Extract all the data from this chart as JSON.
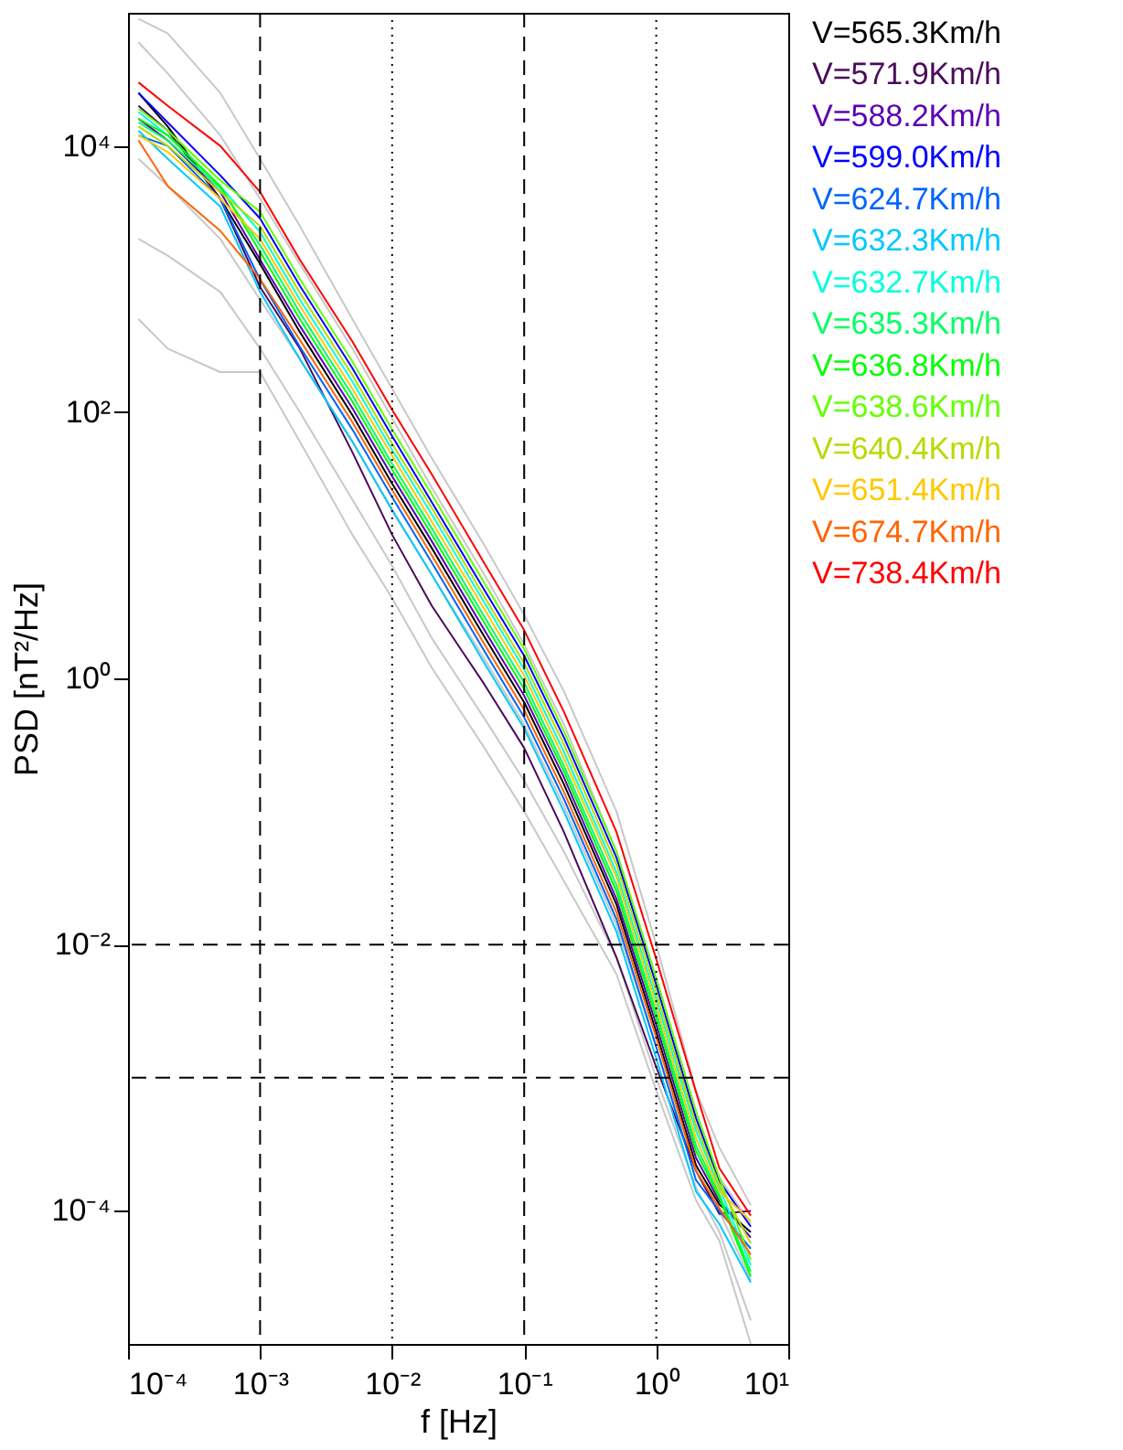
{
  "chart_data": {
    "type": "line",
    "xlabel": "f [Hz]",
    "ylabel": "PSD [nT²/Hz]",
    "x": [
      0.00012,
      0.0002,
      0.0005,
      0.001,
      0.002,
      0.005,
      0.01,
      0.02,
      0.05,
      0.1,
      0.2,
      0.5,
      1,
      2,
      3,
      5.2
    ],
    "log": "xy",
    "xlim": [
      0.0001,
      10
    ],
    "ylim": [
      1e-05,
      100000
    ],
    "xticks": [
      {
        "value": 0.0001,
        "label": "10⁻⁴"
      },
      {
        "value": 0.001,
        "label": "10⁻³"
      },
      {
        "value": 0.01,
        "label": "10⁻²"
      },
      {
        "value": 0.1,
        "label": "10⁻¹"
      },
      {
        "value": 1,
        "label": "10⁰"
      },
      {
        "value": 10,
        "label": "10¹"
      }
    ],
    "yticks": [
      {
        "value": 0.0001,
        "label": "10⁻⁴"
      },
      {
        "value": 0.01,
        "label": "10⁻²"
      },
      {
        "value": 1,
        "label": "10⁰"
      },
      {
        "value": 100,
        "label": "10²"
      },
      {
        "value": 10000,
        "label": "10⁴"
      }
    ],
    "grid": false,
    "legend": "right",
    "line_style": "solid",
    "ref_lines": [
      {
        "axis": "x",
        "value": 0.001,
        "line_style": "dashed",
        "color": "#000000"
      },
      {
        "axis": "x",
        "value": 0.01,
        "line_style": "dotted",
        "color": "#000000"
      },
      {
        "axis": "x",
        "value": 0.1,
        "line_style": "dashed",
        "color": "#000000"
      },
      {
        "axis": "x",
        "value": 1,
        "line_style": "dotted",
        "color": "#000000"
      },
      {
        "axis": "y",
        "value": 0.01,
        "line_style": "dashed",
        "color": "#000000"
      },
      {
        "axis": "y",
        "value": 0.001,
        "line_style": "dashed",
        "color": "#000000"
      }
    ],
    "series": [
      {
        "color": "#c8c8c8",
        "values": [
          90000,
          70000,
          25000,
          8000,
          2500,
          500,
          150,
          45,
          10,
          3,
          0.8,
          0.1,
          0.01,
          0.0008,
          0.0003,
          0.00011
        ]
      },
      {
        "color": "#c8c8c8",
        "values": [
          60000,
          35000,
          12000,
          4000,
          1300,
          300,
          90,
          27,
          6,
          1.8,
          0.45,
          0.05,
          0.005,
          0.00045,
          0.00018,
          8e-05
        ]
      },
      {
        "color": "#c8c8c8",
        "values": [
          8000,
          5000,
          2000,
          700,
          250,
          60,
          18,
          6,
          1.4,
          0.45,
          0.11,
          0.014,
          0.0017,
          0.0002,
          0.0001,
          3e-05
        ]
      },
      {
        "color": "#c8c8c8",
        "values": [
          2000,
          1500,
          800,
          300,
          100,
          22,
          7,
          2,
          0.5,
          0.17,
          0.05,
          0.008,
          0.001,
          0.00015,
          7e-05,
          1.5e-05
        ]
      },
      {
        "color": "#c8c8c8",
        "values": [
          500,
          300,
          200,
          200,
          60,
          12,
          4,
          1.2,
          0.3,
          0.1,
          0.03,
          0.006,
          0.0008,
          0.00012,
          6e-05,
          1e-05
        ]
      },
      {
        "name": "V=565.3Km/h",
        "color": "#000000",
        "values": [
          25000,
          14000,
          4000,
          1300,
          400,
          95,
          29,
          9.5,
          2.05,
          0.66,
          0.16,
          0.02,
          0.0022,
          0.00022,
          0.000112,
          6.9e-05
        ]
      },
      {
        "name": "V=571.9Km/h",
        "color": "#4b0a5a",
        "values": [
          20000,
          13000,
          4000,
          870,
          300,
          50,
          12,
          3.5,
          0.9,
          0.3,
          0.07,
          0.008,
          0.0012,
          0.0002,
          9.5e-05,
          0.0001
        ]
      },
      {
        "name": "V=588.2Km/h",
        "color": "#5a00b4",
        "values": [
          16000,
          11000,
          4500,
          1400,
          445,
          107,
          33,
          10.7,
          2.3,
          0.74,
          0.18,
          0.022,
          0.0025,
          0.00025,
          0.000119,
          6.3e-05
        ]
      },
      {
        "name": "V=599.0Km/h",
        "color": "#0000ff",
        "values": [
          25000,
          15000,
          6000,
          2850,
          890,
          214,
          66,
          21,
          4.6,
          1.48,
          0.36,
          0.045,
          0.005,
          0.0005,
          0.000168,
          7.6e-05
        ]
      },
      {
        "name": "V=624.7Km/h",
        "color": "#0064ff",
        "values": [
          12000,
          10000,
          4000,
          990,
          310,
          74,
          23,
          7.4,
          1.6,
          0.51,
          0.124,
          0.0155,
          0.0017,
          0.00017,
          0.0001,
          5.2e-05
        ]
      },
      {
        "name": "V=632.3Km/h",
        "color": "#00c8ff",
        "values": [
          13000,
          8000,
          3500,
          800,
          250,
          60,
          18.5,
          6,
          1.3,
          0.42,
          0.1,
          0.0125,
          0.0014,
          0.00014,
          8e-05,
          2.9e-05
        ]
      },
      {
        "name": "V=632.7Km/h",
        "color": "#00ffdc",
        "values": [
          18000,
          12000,
          5000,
          2250,
          700,
          170,
          52,
          17,
          3.7,
          1.17,
          0.28,
          0.035,
          0.0039,
          0.0004,
          0.00015,
          3.9e-05
        ]
      },
      {
        "name": "V=635.3Km/h",
        "color": "#00ff64",
        "values": [
          15000,
          11000,
          4800,
          1800,
          560,
          134,
          41,
          13.4,
          2.9,
          0.93,
          0.22,
          0.028,
          0.0031,
          0.00031,
          0.000133,
          3.5e-05
        ]
      },
      {
        "name": "V=636.8Km/h",
        "color": "#00ff00",
        "values": [
          16000,
          12000,
          5000,
          1600,
          500,
          120,
          37,
          12,
          2.6,
          0.83,
          0.2,
          0.025,
          0.0028,
          0.00028,
          0.000126,
          3.2e-05
        ]
      },
      {
        "name": "V=638.6Km/h",
        "color": "#64ff00",
        "values": [
          19000,
          13000,
          5500,
          3200,
          1000,
          240,
          74,
          24,
          5.2,
          1.66,
          0.4,
          0.05,
          0.0056,
          0.00056,
          0.000178,
          4.3e-05
        ]
      },
      {
        "name": "V=640.4Km/h",
        "color": "#b4dc00",
        "values": [
          14000,
          10000,
          4500,
          2500,
          790,
          190,
          58,
          19,
          4.1,
          1.3,
          0.32,
          0.04,
          0.0044,
          0.00044,
          0.000158,
          5.7e-05
        ]
      },
      {
        "name": "V=651.4Km/h",
        "color": "#ffc800",
        "values": [
          12000,
          9000,
          4000,
          2000,
          630,
          150,
          47,
          15,
          3.3,
          1.05,
          0.25,
          0.032,
          0.0035,
          0.00035,
          0.000141,
          8.4e-05
        ]
      },
      {
        "name": "V=674.7Km/h",
        "color": "#ff6400",
        "values": [
          11000,
          5000,
          2300,
          1000,
          350,
          84,
          26,
          8.4,
          1.8,
          0.58,
          0.14,
          0.0175,
          0.002,
          0.0002,
          0.000105,
          4.7e-05
        ]
      },
      {
        "name": "V=738.4Km/h",
        "color": "#ff0000",
        "values": [
          30000,
          20000,
          10000,
          4500,
          1400,
          340,
          104,
          34,
          7.3,
          2.3,
          0.56,
          0.07,
          0.0078,
          0.00078,
          0.00021,
          9.2e-05
        ]
      }
    ]
  }
}
